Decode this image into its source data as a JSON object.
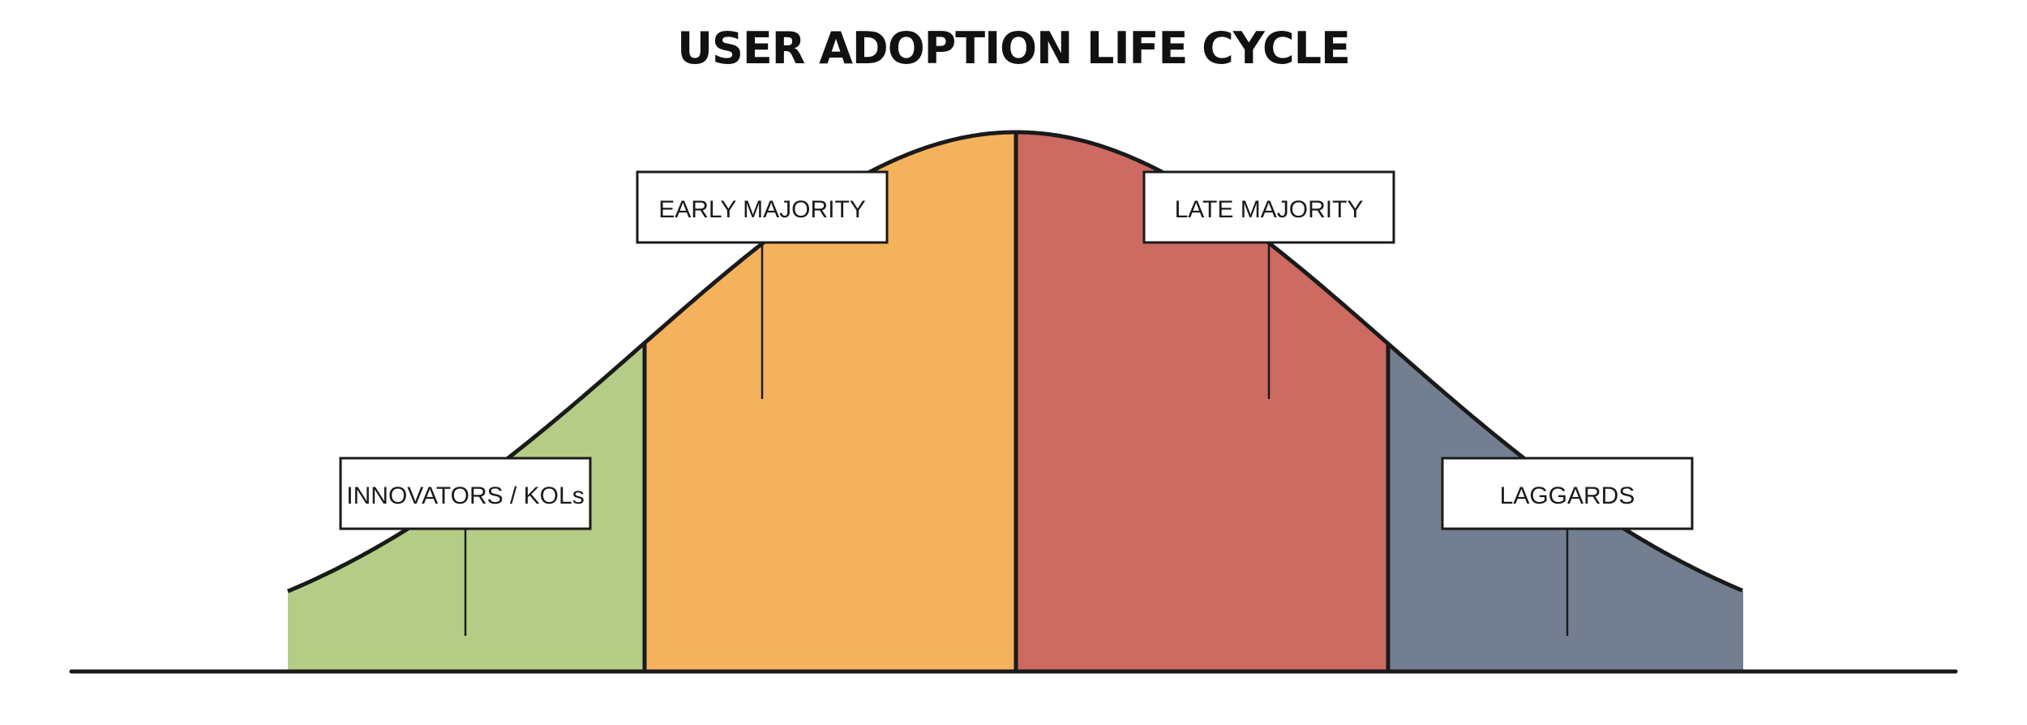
{
  "title": "USER ADOPTION LIFE CYCLE",
  "segments": [
    {
      "label": "INNOVATORS / KOLs",
      "color": "#b5cc87"
    },
    {
      "label": "EARLY MAJORITY",
      "color": "#f4b25d"
    },
    {
      "label": "LATE MAJORITY",
      "color": "#cd6a62"
    },
    {
      "label": "LAGGARDS",
      "color": "#737f90"
    }
  ]
}
